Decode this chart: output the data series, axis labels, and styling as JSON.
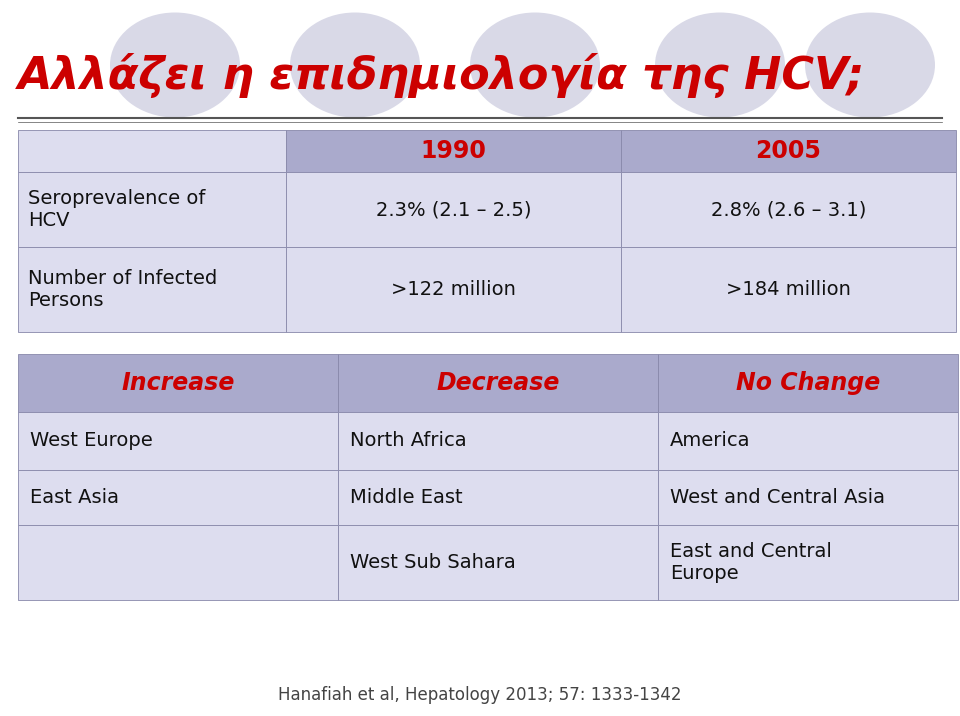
{
  "title": "Αλλάζει η επιδημιολογία της HCV;",
  "title_color": "#CC0000",
  "background_color": "#FFFFFF",
  "table1": {
    "header_bg": "#AAAACC",
    "cell_bg": "#DDDDEF",
    "col_headers": [
      "",
      "1990",
      "2005"
    ],
    "col_header_color": "#CC0000",
    "rows": [
      [
        "Seroprevalence of\nHCV",
        "2.3% (2.1 – 2.5)",
        "2.8% (2.6 – 3.1)"
      ],
      [
        "Number of Infected\nPersons",
        ">122 million",
        ">184 million"
      ]
    ]
  },
  "table2": {
    "header_bg": "#AAAACC",
    "cell_bg": "#DDDDEF",
    "col_headers": [
      "Increase",
      "Decrease",
      "No Change"
    ],
    "col_header_color": "#CC0000",
    "rows": [
      [
        "West Europe",
        "North Africa",
        "America"
      ],
      [
        "East Asia",
        "Middle East",
        "West and Central Asia"
      ],
      [
        "",
        "West Sub Sahara",
        "East and Central\nEurope"
      ]
    ]
  },
  "citation": "Hanafiah et al, Hepatology 2013; 57: 1333-1342",
  "citation_color": "#444444",
  "line_color": "#555555",
  "ellipse_color": "#C0C0D8"
}
